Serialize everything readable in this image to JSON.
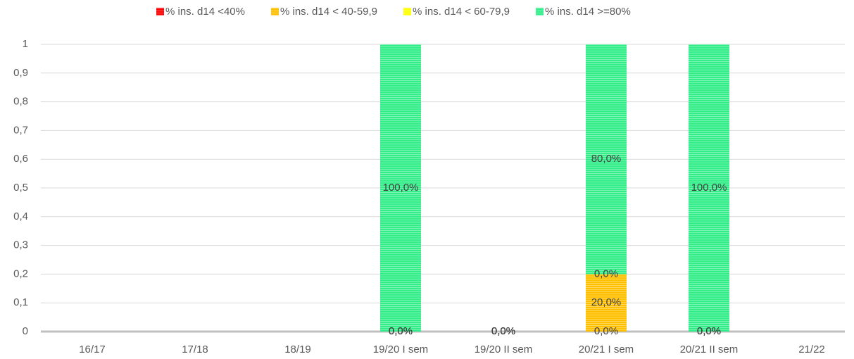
{
  "chart_data": {
    "type": "stacked_bar",
    "categories": [
      "16/17",
      "17/18",
      "18/19",
      "19/20 I sem",
      "19/20 II sem",
      "20/21 I sem",
      "20/21 II sem",
      "21/22"
    ],
    "series": [
      {
        "name": "% ins. d14 <40%",
        "color": "#ff0000",
        "values": [
          null,
          null,
          null,
          0,
          0,
          0,
          0,
          null
        ],
        "value_labels": [
          null,
          null,
          null,
          "0,0%",
          "0,0%",
          "0,0%",
          "0,0%",
          null
        ]
      },
      {
        "name": "% ins. d14 < 40-59,9",
        "color": "#ffc000",
        "values": [
          null,
          null,
          null,
          0,
          0,
          0.2,
          0,
          null
        ],
        "value_labels": [
          null,
          null,
          null,
          "0,0%",
          "0,0%",
          "20,0%",
          "0,0%",
          null
        ]
      },
      {
        "name": "% ins. d14 < 60-79,9",
        "color": "#ffff00",
        "values": [
          null,
          null,
          null,
          0,
          0,
          0,
          0,
          null
        ],
        "value_labels": [
          null,
          null,
          null,
          "0,0%",
          "0,0%",
          "0,0%",
          "0,0%",
          null
        ]
      },
      {
        "name": "% ins. d14 >=80%",
        "color": "#33ee88",
        "values": [
          null,
          null,
          null,
          1,
          0,
          0.8,
          1,
          null
        ],
        "value_labels": [
          null,
          null,
          null,
          "100,0%",
          "0,0%",
          "80,0%",
          "100,0%",
          null
        ]
      }
    ],
    "ylim": [
      0,
      1
    ],
    "yticks": [
      0,
      {
        "value": 0.1,
        "label": "0,1"
      },
      {
        "value": 0.2,
        "label": "0,2"
      },
      {
        "value": 0.3,
        "label": "0,3"
      },
      {
        "value": 0.4,
        "label": "0,4"
      },
      {
        "value": 0.5,
        "label": "0,5"
      },
      {
        "value": 0.6,
        "label": "0,6"
      },
      {
        "value": 0.7,
        "label": "0,7"
      },
      {
        "value": 0.8,
        "label": "0,8"
      },
      {
        "value": 0.9,
        "label": "0,9"
      },
      1
    ],
    "grid": true,
    "legend": "top"
  }
}
